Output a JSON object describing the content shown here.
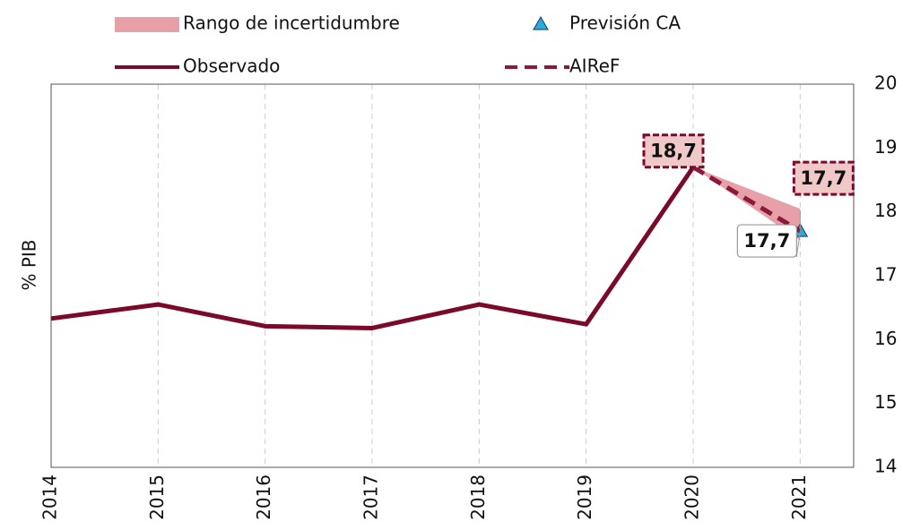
{
  "chart_data": {
    "type": "line",
    "y_axis_label": "% PIB",
    "xlim": [
      2014,
      2021.5
    ],
    "xticks": [
      2014,
      2015,
      2016,
      2017,
      2018,
      2019,
      2020,
      2021
    ],
    "ylim": [
      14,
      20
    ],
    "yticks": [
      14,
      15,
      16,
      17,
      18,
      19,
      20
    ],
    "grid": true,
    "series": [
      {
        "name": "Rango de incertidumbre",
        "type": "band",
        "color": "#e8a0a8",
        "x": [
          2020,
          2021
        ],
        "low": [
          18.7,
          17.55
        ],
        "high": [
          18.7,
          18.05
        ]
      },
      {
        "name": "Previsión CA",
        "type": "marker",
        "color": "#29a9e0",
        "x": [
          2021
        ],
        "values": [
          17.7
        ],
        "value_labels": [
          "17,7"
        ]
      },
      {
        "name": "Observado",
        "type": "line",
        "color": "#7b0a2a",
        "x": [
          2014,
          2015,
          2016,
          2017,
          2018,
          2019,
          2020
        ],
        "values": [
          16.33,
          16.55,
          16.21,
          16.18,
          16.55,
          16.24,
          18.7
        ],
        "value_labels": [
          null,
          null,
          null,
          null,
          null,
          null,
          "18,7"
        ]
      },
      {
        "name": "AIReF",
        "type": "dashed",
        "color": "#8b1a3a",
        "x": [
          2020,
          2021
        ],
        "values": [
          18.7,
          17.7
        ],
        "value_labels": [
          null,
          "17,7"
        ]
      }
    ]
  }
}
